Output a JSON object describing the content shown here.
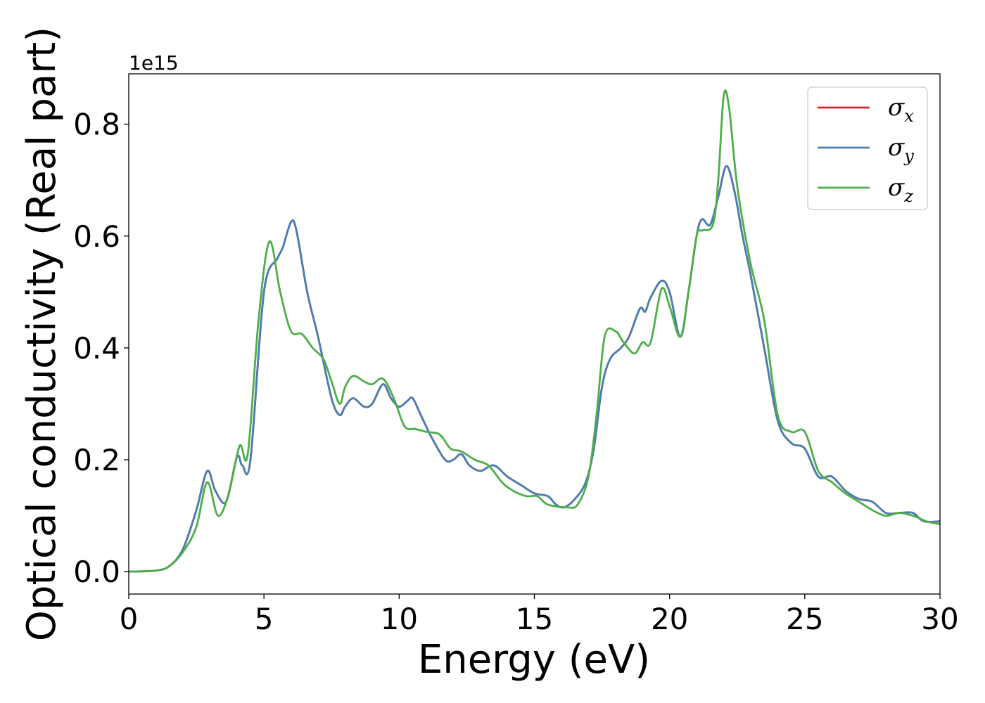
{
  "chart_data": {
    "type": "line",
    "title": "",
    "xlabel": "Energy (eV)",
    "ylabel": "Optical conductivity (Real part)",
    "y_offset_label": "1e15",
    "xlim": [
      0,
      30
    ],
    "ylim": [
      -0.04,
      0.89
    ],
    "x_ticks": [
      0,
      5,
      10,
      15,
      20,
      25,
      30
    ],
    "x_tick_labels": [
      "0",
      "5",
      "10",
      "15",
      "20",
      "25",
      "30"
    ],
    "y_ticks": [
      0.0,
      0.2,
      0.4,
      0.6,
      0.8
    ],
    "y_tick_labels": [
      "0.0",
      "0.2",
      "0.4",
      "0.6",
      "0.8"
    ],
    "grid": false,
    "legend_position": "top-right",
    "series": [
      {
        "name": "σx",
        "symbol": "σ",
        "subscript": "x",
        "color": "#d62728",
        "x": [
          0,
          1,
          1.5,
          2,
          2.5,
          2.9,
          3.2,
          3.6,
          4.0,
          4.2,
          4.5,
          5.0,
          5.5,
          5.7,
          6.0,
          6.2,
          6.6,
          7.0,
          7.5,
          7.8,
          8.0,
          8.3,
          8.7,
          9.0,
          9.4,
          9.7,
          10.0,
          10.3,
          10.5,
          10.8,
          11.2,
          11.7,
          12.0,
          12.3,
          12.6,
          13.0,
          13.5,
          14.0,
          14.5,
          15.0,
          15.5,
          15.8,
          16.1,
          16.5,
          16.9,
          17.2,
          17.5,
          17.8,
          18.2,
          18.5,
          18.9,
          19.1,
          19.3,
          19.7,
          20.0,
          20.4,
          20.7,
          21.0,
          21.2,
          21.5,
          21.8,
          22.1,
          22.4,
          22.7,
          23.0,
          23.5,
          24.0,
          24.5,
          25.0,
          25.5,
          26.0,
          26.5,
          27.0,
          27.5,
          28.0,
          28.5,
          29.0,
          29.4,
          30.0
        ],
        "y": [
          0,
          0.002,
          0.01,
          0.04,
          0.11,
          0.18,
          0.145,
          0.125,
          0.205,
          0.19,
          0.2,
          0.5,
          0.56,
          0.58,
          0.625,
          0.61,
          0.5,
          0.42,
          0.31,
          0.28,
          0.295,
          0.31,
          0.295,
          0.3,
          0.335,
          0.31,
          0.295,
          0.305,
          0.31,
          0.28,
          0.24,
          0.2,
          0.2,
          0.21,
          0.19,
          0.18,
          0.19,
          0.17,
          0.155,
          0.14,
          0.135,
          0.12,
          0.115,
          0.13,
          0.16,
          0.22,
          0.33,
          0.38,
          0.4,
          0.42,
          0.47,
          0.465,
          0.49,
          0.52,
          0.5,
          0.42,
          0.5,
          0.6,
          0.63,
          0.62,
          0.67,
          0.725,
          0.68,
          0.6,
          0.53,
          0.4,
          0.27,
          0.23,
          0.22,
          0.17,
          0.17,
          0.145,
          0.13,
          0.125,
          0.105,
          0.105,
          0.105,
          0.09,
          0.09
        ]
      },
      {
        "name": "σy",
        "symbol": "σ",
        "subscript": "y",
        "color": "#4a7fb5",
        "x": [
          0,
          1,
          1.5,
          2,
          2.5,
          2.9,
          3.2,
          3.6,
          4.0,
          4.2,
          4.5,
          5.0,
          5.5,
          5.7,
          6.0,
          6.2,
          6.6,
          7.0,
          7.5,
          7.8,
          8.0,
          8.3,
          8.7,
          9.0,
          9.4,
          9.7,
          10.0,
          10.3,
          10.5,
          10.8,
          11.2,
          11.7,
          12.0,
          12.3,
          12.6,
          13.0,
          13.5,
          14.0,
          14.5,
          15.0,
          15.5,
          15.8,
          16.1,
          16.5,
          16.9,
          17.2,
          17.5,
          17.8,
          18.2,
          18.5,
          18.9,
          19.1,
          19.3,
          19.7,
          20.0,
          20.4,
          20.7,
          21.0,
          21.2,
          21.5,
          21.8,
          22.1,
          22.4,
          22.7,
          23.0,
          23.5,
          24.0,
          24.5,
          25.0,
          25.5,
          26.0,
          26.5,
          27.0,
          27.5,
          28.0,
          28.5,
          29.0,
          29.4,
          30.0
        ],
        "y": [
          0,
          0.002,
          0.01,
          0.04,
          0.11,
          0.18,
          0.145,
          0.125,
          0.205,
          0.19,
          0.2,
          0.5,
          0.56,
          0.58,
          0.625,
          0.61,
          0.5,
          0.42,
          0.31,
          0.28,
          0.295,
          0.31,
          0.295,
          0.3,
          0.335,
          0.31,
          0.295,
          0.305,
          0.31,
          0.28,
          0.24,
          0.2,
          0.2,
          0.21,
          0.19,
          0.18,
          0.19,
          0.17,
          0.155,
          0.14,
          0.135,
          0.12,
          0.115,
          0.13,
          0.16,
          0.22,
          0.33,
          0.38,
          0.4,
          0.42,
          0.47,
          0.465,
          0.49,
          0.52,
          0.5,
          0.42,
          0.5,
          0.6,
          0.63,
          0.62,
          0.67,
          0.725,
          0.68,
          0.6,
          0.53,
          0.4,
          0.27,
          0.23,
          0.22,
          0.17,
          0.17,
          0.145,
          0.13,
          0.125,
          0.105,
          0.105,
          0.105,
          0.09,
          0.09
        ]
      },
      {
        "name": "σz",
        "symbol": "σ",
        "subscript": "z",
        "color": "#4daf4a",
        "x": [
          0,
          1,
          1.5,
          2,
          2.5,
          2.9,
          3.3,
          3.7,
          4.1,
          4.4,
          4.8,
          5.2,
          5.6,
          6.0,
          6.4,
          6.8,
          7.2,
          7.5,
          7.8,
          8.0,
          8.3,
          8.7,
          9.0,
          9.4,
          9.8,
          10.2,
          10.6,
          11.0,
          11.5,
          11.9,
          12.3,
          12.8,
          13.3,
          13.8,
          14.2,
          14.7,
          15.1,
          15.5,
          16.2,
          16.6,
          17.0,
          17.3,
          17.6,
          18.0,
          18.3,
          18.7,
          19.0,
          19.3,
          19.7,
          20.0,
          20.4,
          20.7,
          21.0,
          21.2,
          21.6,
          21.8,
          22.0,
          22.2,
          22.5,
          23.0,
          23.5,
          24.0,
          24.5,
          25.0,
          25.5,
          26.0,
          26.5,
          27.0,
          27.5,
          28.0,
          28.5,
          29.0,
          29.5,
          30.0
        ],
        "y": [
          0,
          0.002,
          0.01,
          0.035,
          0.08,
          0.16,
          0.1,
          0.14,
          0.225,
          0.21,
          0.45,
          0.59,
          0.5,
          0.43,
          0.425,
          0.4,
          0.38,
          0.34,
          0.3,
          0.33,
          0.35,
          0.34,
          0.335,
          0.345,
          0.31,
          0.26,
          0.255,
          0.25,
          0.245,
          0.22,
          0.215,
          0.2,
          0.19,
          0.16,
          0.145,
          0.135,
          0.135,
          0.12,
          0.115,
          0.12,
          0.17,
          0.28,
          0.42,
          0.43,
          0.41,
          0.39,
          0.41,
          0.41,
          0.505,
          0.475,
          0.42,
          0.5,
          0.6,
          0.61,
          0.62,
          0.7,
          0.85,
          0.83,
          0.69,
          0.55,
          0.45,
          0.28,
          0.25,
          0.25,
          0.18,
          0.16,
          0.14,
          0.125,
          0.11,
          0.1,
          0.105,
          0.1,
          0.09,
          0.085
        ]
      }
    ]
  }
}
